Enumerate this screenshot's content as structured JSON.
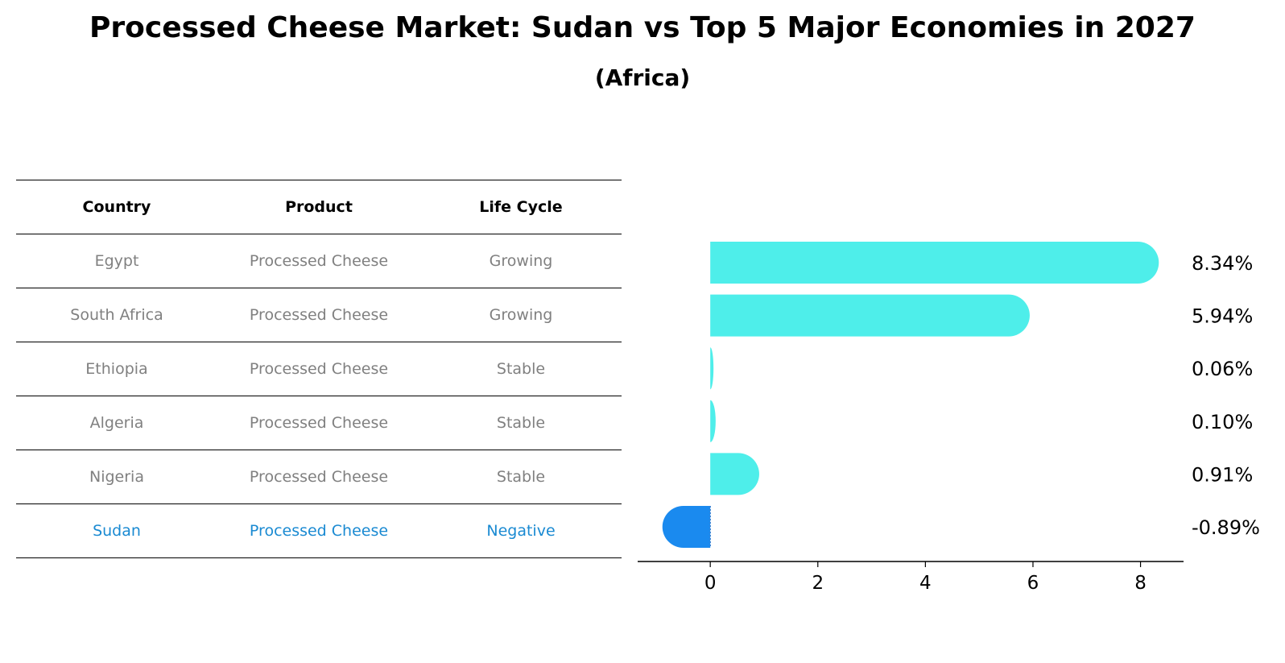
{
  "title": "Processed Cheese Market: Sudan vs Top 5 Major Economies in 2027",
  "subtitle": "(Africa)",
  "table": {
    "headers": [
      "Country",
      "Product",
      "Life Cycle"
    ],
    "rows": [
      [
        "Egypt",
        "Processed Cheese",
        "Growing"
      ],
      [
        "South Africa",
        "Processed Cheese",
        "Growing"
      ],
      [
        "Ethiopia",
        "Processed Cheese",
        "Stable"
      ],
      [
        "Algeria",
        "Processed Cheese",
        "Stable"
      ],
      [
        "Nigeria",
        "Processed Cheese",
        "Stable"
      ],
      [
        "Sudan",
        "Processed Cheese",
        "Negative"
      ]
    ],
    "highlight_country": "Sudan"
  },
  "chart_data": {
    "type": "bar",
    "orientation": "horizontal",
    "categories": [
      "Egypt",
      "South Africa",
      "Ethiopia",
      "Algeria",
      "Nigeria",
      "Sudan"
    ],
    "values": [
      8.34,
      5.94,
      0.06,
      0.1,
      0.91,
      -0.89
    ],
    "labels": [
      "8.34%",
      "5.94%",
      "0.06%",
      "0.10%",
      "0.91%",
      "-0.89%"
    ],
    "xlim": [
      -1.35,
      8.8
    ],
    "xticks": [
      0,
      2,
      4,
      6,
      8
    ],
    "colors": {
      "default": "#4eeeea",
      "highlight": "#1a8aef"
    },
    "highlight": "Sudan"
  }
}
